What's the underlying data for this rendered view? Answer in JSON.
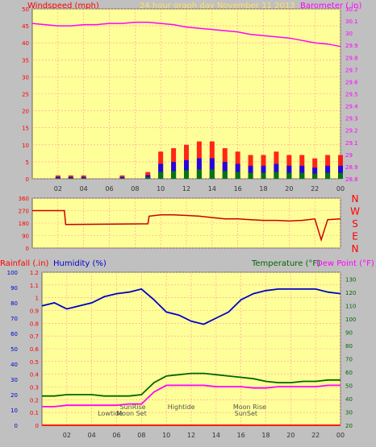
{
  "title": "24 hour graph day   November 11 2013",
  "colors": {
    "background": "#c0c0c0",
    "plot_bg": "#ffff99",
    "grid": "#ff9999",
    "title": "#ffe066",
    "wind": "#ff0000",
    "gust": "#0000ff",
    "wind_green": "#008000",
    "barometer": "#ff00ff",
    "rain": "#ff0000",
    "humidity": "#0000cc",
    "temperature": "#006600",
    "dewpoint": "#ff00ff",
    "axis_text": "#333333"
  },
  "chart_data": [
    {
      "type": "line",
      "title": "24 hour graph day   November 11 2013",
      "ylabel": "Windspeed (mph)",
      "y2label": "Barometer (.in)",
      "x_ticks": [
        "02",
        "04",
        "06",
        "08",
        "10",
        "12",
        "14",
        "16",
        "18",
        "20",
        "22",
        "00"
      ],
      "x_range": [
        0,
        24
      ],
      "ylim": [
        0,
        50
      ],
      "y_ticks": [
        "0",
        "5",
        "10",
        "15",
        "20",
        "25",
        "30",
        "35",
        "40",
        "45",
        "50"
      ],
      "y2lim": [
        28.8,
        30.2
      ],
      "y2_ticks": [
        "28.8",
        "28.9",
        "29",
        "29.1",
        "29.2",
        "29.3",
        "29.4",
        "29.5",
        "29.6",
        "29.7",
        "29.8",
        "29.9",
        "30",
        "30.1",
        "30.2"
      ],
      "grid": true,
      "series": [
        {
          "name": "Barometer",
          "axis": "right",
          "x": [
            0,
            1,
            2,
            3,
            4,
            5,
            6,
            7,
            8,
            9,
            10,
            11,
            12,
            13,
            14,
            15,
            16,
            17,
            18,
            19,
            20,
            21,
            22,
            23,
            24
          ],
          "values": [
            30.08,
            30.07,
            30.06,
            30.06,
            30.07,
            30.07,
            30.08,
            30.08,
            30.09,
            30.09,
            30.08,
            30.07,
            30.05,
            30.04,
            30.03,
            30.02,
            30.01,
            29.99,
            29.98,
            29.97,
            29.96,
            29.94,
            29.92,
            29.91,
            29.89
          ]
        },
        {
          "name": "Wind speed",
          "axis": "left",
          "x": [
            0,
            1,
            2,
            3,
            4,
            5,
            6,
            7,
            8,
            9,
            10,
            11,
            12,
            13,
            14,
            15,
            16,
            17,
            18,
            19,
            20,
            21,
            22,
            23,
            24
          ],
          "values": [
            0,
            0,
            1,
            1,
            1,
            0,
            0,
            1,
            0,
            2,
            8,
            9,
            10,
            11,
            11,
            9,
            8,
            7,
            7,
            8,
            7,
            7,
            6,
            7,
            7
          ]
        }
      ]
    },
    {
      "type": "line",
      "ylabel_right": [
        "N",
        "W",
        "S",
        "E",
        "N"
      ],
      "x_range": [
        0,
        24
      ],
      "ylim": [
        0,
        360
      ],
      "y_ticks": [
        "0",
        "90",
        "180",
        "270",
        "360"
      ],
      "grid": true,
      "series": [
        {
          "name": "Wind direction",
          "x": [
            0,
            2.5,
            2.6,
            9,
            9.1,
            10,
            11,
            12,
            13,
            14,
            15,
            16,
            17,
            18,
            19,
            20,
            21,
            22,
            22.5,
            23,
            24
          ],
          "values": [
            270,
            270,
            170,
            175,
            230,
            240,
            240,
            235,
            230,
            220,
            210,
            210,
            205,
            200,
            200,
            195,
            200,
            210,
            60,
            205,
            210
          ]
        }
      ]
    },
    {
      "type": "line",
      "ylabel": "Rainfall (.in)",
      "ylabel2": "Humidity (%)",
      "y2label": "Temperature (°F)",
      "y2label2": "Dew Point (°F)",
      "x_ticks": [
        "02",
        "04",
        "06",
        "08",
        "10",
        "12",
        "14",
        "16",
        "18",
        "20",
        "22",
        "00"
      ],
      "x_range": [
        0,
        24
      ],
      "rain_ticks": [
        "0",
        "0.1",
        "0.2",
        "0.3",
        "0.4",
        "0.5",
        "0.6",
        "0.7",
        "0.8",
        "0.9",
        "1",
        "1.1",
        "1.2"
      ],
      "rainlim": [
        0,
        1.2
      ],
      "humidity_ticks": [
        "0",
        "10",
        "20",
        "30",
        "40",
        "50",
        "60",
        "70",
        "80",
        "90",
        "100"
      ],
      "humiditylim": [
        0,
        100
      ],
      "temp_ticks": [
        "20",
        "30",
        "40",
        "50",
        "60",
        "70",
        "80",
        "90",
        "100",
        "110",
        "120",
        "130"
      ],
      "templim": [
        20,
        135
      ],
      "grid": true,
      "series": [
        {
          "name": "Humidity",
          "axis": "humidity",
          "x": [
            0,
            1,
            2,
            3,
            4,
            5,
            6,
            7,
            8,
            9,
            10,
            11,
            12,
            13,
            14,
            15,
            16,
            17,
            18,
            19,
            20,
            21,
            22,
            23,
            24
          ],
          "values": [
            78,
            80,
            76,
            78,
            80,
            84,
            86,
            87,
            89,
            82,
            74,
            72,
            68,
            66,
            70,
            74,
            82,
            86,
            88,
            89,
            89,
            89,
            89,
            87,
            86
          ]
        },
        {
          "name": "Temperature",
          "axis": "temp",
          "x": [
            0,
            1,
            2,
            3,
            4,
            5,
            6,
            7,
            8,
            9,
            10,
            11,
            12,
            13,
            14,
            15,
            16,
            17,
            18,
            19,
            20,
            21,
            22,
            23,
            24
          ],
          "values": [
            42,
            42,
            43,
            43,
            43,
            42,
            42,
            42,
            43,
            52,
            57,
            58,
            59,
            59,
            58,
            57,
            56,
            55,
            53,
            52,
            52,
            53,
            53,
            54,
            54
          ]
        },
        {
          "name": "Dew Point",
          "axis": "temp",
          "x": [
            0,
            1,
            2,
            3,
            4,
            5,
            6,
            7,
            8,
            9,
            10,
            11,
            12,
            13,
            14,
            15,
            16,
            17,
            18,
            19,
            20,
            21,
            22,
            23,
            24
          ],
          "values": [
            34,
            34,
            35,
            35,
            35,
            35,
            35,
            36,
            36,
            45,
            50,
            50,
            50,
            50,
            49,
            49,
            49,
            48,
            48,
            49,
            49,
            49,
            49,
            50,
            50
          ]
        },
        {
          "name": "Rainfall",
          "axis": "rain",
          "x": [
            0,
            24
          ],
          "values": [
            0,
            0
          ]
        }
      ],
      "annotations": [
        {
          "text": "Lowtide",
          "x": 5.5
        },
        {
          "text": "SunRise",
          "x": 7.3
        },
        {
          "text": "Moon Set",
          "x": 7.2
        },
        {
          "text": "Hightide",
          "x": 11.2
        },
        {
          "text": "SunSet",
          "x": 16.4
        },
        {
          "text": "Moon Rise",
          "x": 16.7
        }
      ]
    }
  ]
}
